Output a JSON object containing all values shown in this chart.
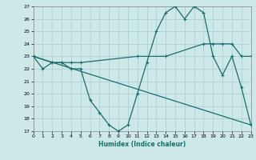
{
  "xlabel": "Humidex (Indice chaleur)",
  "bg_color": "#cde8e8",
  "grid_color": "#b0d0d0",
  "line_color": "#1a6e6a",
  "xlim": [
    0,
    23
  ],
  "ylim": [
    17,
    27
  ],
  "yticks": [
    17,
    18,
    19,
    20,
    21,
    22,
    23,
    24,
    25,
    26,
    27
  ],
  "xticks": [
    0,
    1,
    2,
    3,
    4,
    5,
    6,
    7,
    8,
    9,
    10,
    11,
    12,
    13,
    14,
    15,
    16,
    17,
    18,
    19,
    20,
    21,
    22,
    23
  ],
  "line1_x": [
    0,
    1,
    2,
    3,
    4,
    5,
    6,
    7,
    8,
    9,
    10,
    11,
    12,
    13,
    14,
    15,
    16,
    17,
    18,
    19,
    20,
    21,
    22,
    23
  ],
  "line1_y": [
    23,
    22,
    22.5,
    22.5,
    22,
    22,
    19.5,
    18.5,
    17.5,
    17,
    17.5,
    20,
    22.5,
    25,
    26.5,
    27,
    26,
    27,
    26.5,
    23,
    21.5,
    23,
    20.5,
    17.5
  ],
  "line2_x": [
    0,
    2,
    3,
    4,
    5,
    11,
    14,
    18,
    19,
    20,
    21,
    22,
    23
  ],
  "line2_y": [
    23,
    22.5,
    22.5,
    22.5,
    22.5,
    23,
    23,
    24,
    24,
    24,
    24,
    23,
    23
  ],
  "line3_x": [
    0,
    23
  ],
  "line3_y": [
    23,
    17.5
  ]
}
